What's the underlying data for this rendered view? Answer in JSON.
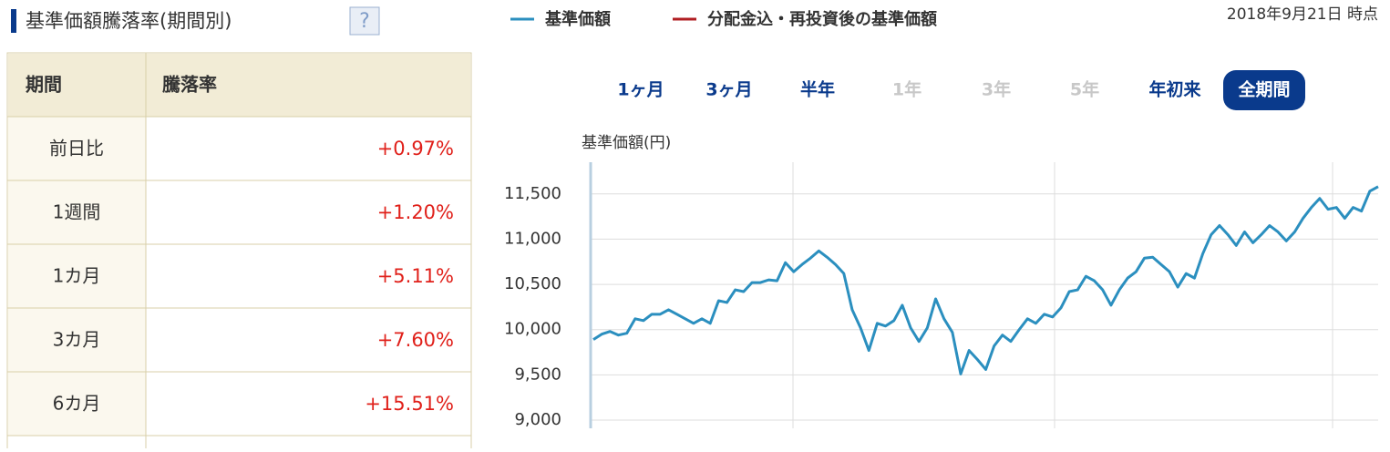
{
  "header": {
    "title": "基準価額騰落率(期間別)",
    "help": "?",
    "date": "2018年9月21日 時点"
  },
  "table": {
    "columns": [
      "期間",
      "騰落率"
    ],
    "rows": [
      [
        "前日比",
        "+0.97%"
      ],
      [
        "1週間",
        "+1.20%"
      ],
      [
        "1カ月",
        "+5.11%"
      ],
      [
        "3カ月",
        "+7.60%"
      ],
      [
        "6カ月",
        "+15.51%"
      ]
    ]
  },
  "periods": [
    {
      "label": "1ヶ月",
      "state": "enabled"
    },
    {
      "label": "3ヶ月",
      "state": "enabled"
    },
    {
      "label": "半年",
      "state": "enabled"
    },
    {
      "label": "1年",
      "state": "disabled"
    },
    {
      "label": "3年",
      "state": "disabled"
    },
    {
      "label": "5年",
      "state": "disabled"
    },
    {
      "label": "年初来",
      "state": "enabled"
    },
    {
      "label": "全期間",
      "state": "active"
    }
  ],
  "chart_data": {
    "type": "line",
    "y_label": "基準価額(円)",
    "grid": true,
    "legend": [
      {
        "name": "基準価額",
        "color": "#2b8fbf"
      },
      {
        "name": "分配金込・再投資後の基準価額",
        "color": "#b01e22"
      }
    ],
    "series": [
      {
        "name": "基準価額",
        "color": "#2b8fbf",
        "values": [
          9890,
          9950,
          9980,
          9940,
          9960,
          10120,
          10100,
          10170,
          10170,
          10220,
          10170,
          10120,
          10070,
          10120,
          10070,
          10320,
          10300,
          10440,
          10420,
          10520,
          10520,
          10550,
          10540,
          10740,
          10640,
          10720,
          10790,
          10870,
          10800,
          10720,
          10620,
          10220,
          10020,
          9770,
          10070,
          10040,
          10100,
          10270,
          10020,
          9870,
          10020,
          10340,
          10120,
          9970,
          9510,
          9770,
          9670,
          9560,
          9820,
          9940,
          9870,
          10000,
          10120,
          10070,
          10170,
          10140,
          10240,
          10420,
          10440,
          10590,
          10540,
          10440,
          10270,
          10440,
          10570,
          10640,
          10790,
          10800,
          10720,
          10640,
          10470,
          10620,
          10570,
          10840,
          11050,
          11150,
          11050,
          10930,
          11080,
          10960,
          11050,
          11150,
          11080,
          10980,
          11080,
          11230,
          11350,
          11450,
          11330,
          11350,
          11230,
          11350,
          11310,
          11530,
          11580
        ]
      }
    ],
    "ylim": [
      8910,
      11850
    ],
    "yticks": [
      {
        "value": 9000,
        "label": "9,000"
      },
      {
        "value": 9500,
        "label": "9,500"
      },
      {
        "value": 10000,
        "label": "10,000"
      },
      {
        "value": 10500,
        "label": "10,500"
      },
      {
        "value": 11000,
        "label": "11,000"
      },
      {
        "value": 11500,
        "label": "11,500"
      }
    ]
  }
}
